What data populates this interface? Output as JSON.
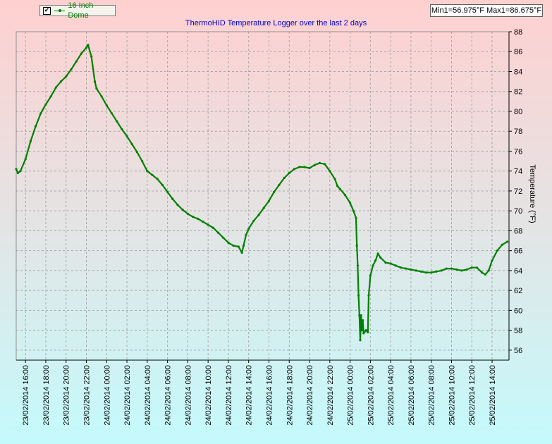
{
  "legend": {
    "checked_glyph": "✔",
    "series_label": "16 Inch Dome",
    "series_color": "#008000",
    "icon": "line-with-dot-icon"
  },
  "minmax": "Min1=56.975°F Max1=86.675°F",
  "colors": {
    "title": "#0000d0",
    "line": "#008000",
    "background_top": "#ffd0d0",
    "background_bottom": "#c4fafc"
  },
  "chart_data": {
    "type": "line",
    "title": "ThermoHID Temperature Logger over the last 2 days",
    "xlabel": "",
    "ylabel": "Temperature (°F)",
    "ylim": [
      55,
      88
    ],
    "yticks": [
      56,
      58,
      60,
      62,
      64,
      66,
      68,
      70,
      72,
      74,
      76,
      78,
      80,
      82,
      84,
      86,
      88
    ],
    "y_axis_side": "right",
    "grid": true,
    "legend_position": "top-left",
    "xlim": [
      "23/02/2014 15:05",
      "25/02/2014 15:40"
    ],
    "xticks": [
      "23/02/2014 16:00",
      "23/02/2014 18:00",
      "23/02/2014 20:00",
      "23/02/2014 22:00",
      "24/02/2014 00:00",
      "24/02/2014 02:00",
      "24/02/2014 04:00",
      "24/02/2014 06:00",
      "24/02/2014 08:00",
      "24/02/2014 10:00",
      "24/02/2014 12:00",
      "24/02/2014 14:00",
      "24/02/2014 16:00",
      "24/02/2014 18:00",
      "24/02/2014 20:00",
      "24/02/2014 22:00",
      "25/02/2014 00:00",
      "25/02/2014 02:00",
      "25/02/2014 04:00",
      "25/02/2014 06:00",
      "25/02/2014 08:00",
      "25/02/2014 10:00",
      "25/02/2014 12:00",
      "25/02/2014 14:00"
    ],
    "series": [
      {
        "name": "16 Inch Dome",
        "points": [
          [
            "23/02/2014 15:05",
            74.2
          ],
          [
            "23/02/2014 15:15",
            73.8
          ],
          [
            "23/02/2014 15:30",
            74.0
          ],
          [
            "23/02/2014 16:00",
            75.2
          ],
          [
            "23/02/2014 16:30",
            77.0
          ],
          [
            "23/02/2014 17:00",
            78.5
          ],
          [
            "23/02/2014 17:30",
            79.8
          ],
          [
            "23/02/2014 18:00",
            80.7
          ],
          [
            "23/02/2014 18:30",
            81.5
          ],
          [
            "23/02/2014 19:00",
            82.4
          ],
          [
            "23/02/2014 19:30",
            83.0
          ],
          [
            "23/02/2014 20:00",
            83.5
          ],
          [
            "23/02/2014 20:30",
            84.2
          ],
          [
            "23/02/2014 21:00",
            85.0
          ],
          [
            "23/02/2014 21:30",
            85.8
          ],
          [
            "23/02/2014 22:00",
            86.4
          ],
          [
            "23/02/2014 22:10",
            86.675
          ],
          [
            "23/02/2014 22:30",
            85.5
          ],
          [
            "23/02/2014 22:50",
            83.0
          ],
          [
            "23/02/2014 23:00",
            82.3
          ],
          [
            "23/02/2014 23:30",
            81.5
          ],
          [
            "24/02/2014 00:00",
            80.6
          ],
          [
            "24/02/2014 00:30",
            79.8
          ],
          [
            "24/02/2014 01:00",
            79.0
          ],
          [
            "24/02/2014 01:30",
            78.2
          ],
          [
            "24/02/2014 02:00",
            77.5
          ],
          [
            "24/02/2014 02:30",
            76.7
          ],
          [
            "24/02/2014 03:00",
            75.9
          ],
          [
            "24/02/2014 03:30",
            75.0
          ],
          [
            "24/02/2014 04:00",
            74.0
          ],
          [
            "24/02/2014 04:30",
            73.6
          ],
          [
            "24/02/2014 05:00",
            73.2
          ],
          [
            "24/02/2014 05:30",
            72.6
          ],
          [
            "24/02/2014 06:00",
            71.9
          ],
          [
            "24/02/2014 06:30",
            71.2
          ],
          [
            "24/02/2014 07:00",
            70.6
          ],
          [
            "24/02/2014 07:30",
            70.1
          ],
          [
            "24/02/2014 08:00",
            69.7
          ],
          [
            "24/02/2014 08:30",
            69.4
          ],
          [
            "24/02/2014 09:00",
            69.2
          ],
          [
            "24/02/2014 09:30",
            68.9
          ],
          [
            "24/02/2014 10:00",
            68.6
          ],
          [
            "24/02/2014 10:30",
            68.3
          ],
          [
            "24/02/2014 11:00",
            67.8
          ],
          [
            "24/02/2014 11:30",
            67.3
          ],
          [
            "24/02/2014 12:00",
            66.8
          ],
          [
            "24/02/2014 12:30",
            66.5
          ],
          [
            "24/02/2014 13:00",
            66.4
          ],
          [
            "24/02/2014 13:20",
            65.8
          ],
          [
            "24/02/2014 13:30",
            66.5
          ],
          [
            "24/02/2014 13:45",
            67.6
          ],
          [
            "24/02/2014 14:00",
            68.2
          ],
          [
            "24/02/2014 14:30",
            69.0
          ],
          [
            "24/02/2014 15:00",
            69.6
          ],
          [
            "24/02/2014 15:30",
            70.3
          ],
          [
            "24/02/2014 16:00",
            71.0
          ],
          [
            "24/02/2014 16:30",
            71.9
          ],
          [
            "24/02/2014 17:00",
            72.6
          ],
          [
            "24/02/2014 17:30",
            73.3
          ],
          [
            "24/02/2014 18:00",
            73.8
          ],
          [
            "24/02/2014 18:30",
            74.2
          ],
          [
            "24/02/2014 19:00",
            74.4
          ],
          [
            "24/02/2014 19:30",
            74.4
          ],
          [
            "24/02/2014 20:00",
            74.3
          ],
          [
            "24/02/2014 20:30",
            74.6
          ],
          [
            "24/02/2014 21:00",
            74.8
          ],
          [
            "24/02/2014 21:30",
            74.7
          ],
          [
            "24/02/2014 22:00",
            74.0
          ],
          [
            "24/02/2014 22:30",
            73.2
          ],
          [
            "24/02/2014 22:45",
            72.5
          ],
          [
            "24/02/2014 23:00",
            72.2
          ],
          [
            "24/02/2014 23:30",
            71.6
          ],
          [
            "25/02/2014 00:00",
            70.8
          ],
          [
            "25/02/2014 00:20",
            70.0
          ],
          [
            "25/02/2014 00:35",
            69.3
          ],
          [
            "25/02/2014 00:40",
            66.5
          ],
          [
            "25/02/2014 00:45",
            64.5
          ],
          [
            "25/02/2014 00:50",
            61.5
          ],
          [
            "25/02/2014 00:55",
            59.5
          ],
          [
            "25/02/2014 01:00",
            57.0
          ],
          [
            "25/02/2014 01:05",
            59.5
          ],
          [
            "25/02/2014 01:10",
            58.0
          ],
          [
            "25/02/2014 01:15",
            59.0
          ],
          [
            "25/02/2014 01:20",
            57.7
          ],
          [
            "25/02/2014 01:35",
            58.0
          ],
          [
            "25/02/2014 01:45",
            57.8
          ],
          [
            "25/02/2014 01:50",
            61.5
          ],
          [
            "25/02/2014 02:00",
            63.5
          ],
          [
            "25/02/2014 02:15",
            64.5
          ],
          [
            "25/02/2014 02:30",
            65.0
          ],
          [
            "25/02/2014 02:45",
            65.7
          ],
          [
            "25/02/2014 03:00",
            65.3
          ],
          [
            "25/02/2014 03:30",
            64.8
          ],
          [
            "25/02/2014 04:00",
            64.7
          ],
          [
            "25/02/2014 04:30",
            64.5
          ],
          [
            "25/02/2014 05:00",
            64.3
          ],
          [
            "25/02/2014 05:30",
            64.2
          ],
          [
            "25/02/2014 06:00",
            64.1
          ],
          [
            "25/02/2014 06:30",
            64.0
          ],
          [
            "25/02/2014 07:00",
            63.9
          ],
          [
            "25/02/2014 07:30",
            63.8
          ],
          [
            "25/02/2014 08:00",
            63.8
          ],
          [
            "25/02/2014 08:30",
            63.9
          ],
          [
            "25/02/2014 09:00",
            64.0
          ],
          [
            "25/02/2014 09:30",
            64.2
          ],
          [
            "25/02/2014 10:00",
            64.2
          ],
          [
            "25/02/2014 10:30",
            64.1
          ],
          [
            "25/02/2014 11:00",
            64.0
          ],
          [
            "25/02/2014 11:30",
            64.1
          ],
          [
            "25/02/2014 12:00",
            64.3
          ],
          [
            "25/02/2014 12:30",
            64.3
          ],
          [
            "25/02/2014 13:00",
            63.8
          ],
          [
            "25/02/2014 13:20",
            63.6
          ],
          [
            "25/02/2014 13:40",
            64.0
          ],
          [
            "25/02/2014 14:00",
            65.0
          ],
          [
            "25/02/2014 14:30",
            66.0
          ],
          [
            "25/02/2014 15:00",
            66.6
          ],
          [
            "25/02/2014 15:30",
            66.9
          ]
        ]
      }
    ]
  }
}
